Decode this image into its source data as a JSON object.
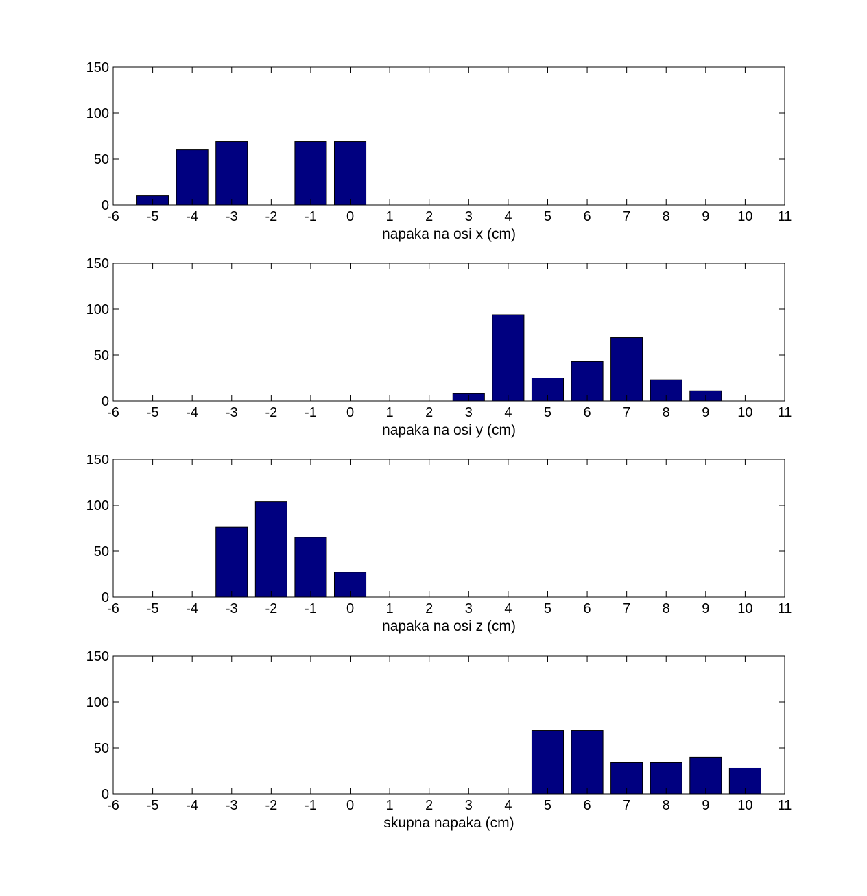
{
  "figure": {
    "bar_color": "#000080",
    "axis_color": "#000000",
    "background": "#ffffff"
  },
  "chart_data": [
    {
      "type": "bar",
      "xlabel": "napaka na osi x (cm)",
      "ylabel": "",
      "xlim": [
        -6,
        11
      ],
      "ylim": [
        0,
        150
      ],
      "xticks": [
        -6,
        -5,
        -4,
        -3,
        -2,
        -1,
        0,
        1,
        2,
        3,
        4,
        5,
        6,
        7,
        8,
        9,
        10,
        11
      ],
      "yticks": [
        0,
        50,
        100,
        150
      ],
      "x": [
        -5,
        -4,
        -3,
        -1,
        0
      ],
      "values": [
        10,
        60,
        69,
        69,
        69
      ],
      "grid": false
    },
    {
      "type": "bar",
      "xlabel": "napaka na osi y (cm)",
      "ylabel": "",
      "xlim": [
        -6,
        11
      ],
      "ylim": [
        0,
        150
      ],
      "xticks": [
        -6,
        -5,
        -4,
        -3,
        -2,
        -1,
        0,
        1,
        2,
        3,
        4,
        5,
        6,
        7,
        8,
        9,
        10,
        11
      ],
      "yticks": [
        0,
        50,
        100,
        150
      ],
      "x": [
        3,
        4,
        5,
        6,
        7,
        8,
        9
      ],
      "values": [
        8,
        94,
        25,
        43,
        69,
        23,
        11
      ],
      "grid": false
    },
    {
      "type": "bar",
      "xlabel": "napaka na osi z (cm)",
      "ylabel": "",
      "xlim": [
        -6,
        11
      ],
      "ylim": [
        0,
        150
      ],
      "xticks": [
        -6,
        -5,
        -4,
        -3,
        -2,
        -1,
        0,
        1,
        2,
        3,
        4,
        5,
        6,
        7,
        8,
        9,
        10,
        11
      ],
      "yticks": [
        0,
        50,
        100,
        150
      ],
      "x": [
        -3,
        -2,
        -1,
        0
      ],
      "values": [
        76,
        104,
        65,
        27
      ],
      "grid": false
    },
    {
      "type": "bar",
      "xlabel": "skupna napaka (cm)",
      "ylabel": "",
      "xlim": [
        -6,
        11
      ],
      "ylim": [
        0,
        150
      ],
      "xticks": [
        -6,
        -5,
        -4,
        -3,
        -2,
        -1,
        0,
        1,
        2,
        3,
        4,
        5,
        6,
        7,
        8,
        9,
        10,
        11
      ],
      "yticks": [
        0,
        50,
        100,
        150
      ],
      "x": [
        5,
        6,
        7,
        8,
        9,
        10
      ],
      "values": [
        69,
        69,
        34,
        34,
        40,
        28
      ],
      "grid": false
    }
  ]
}
